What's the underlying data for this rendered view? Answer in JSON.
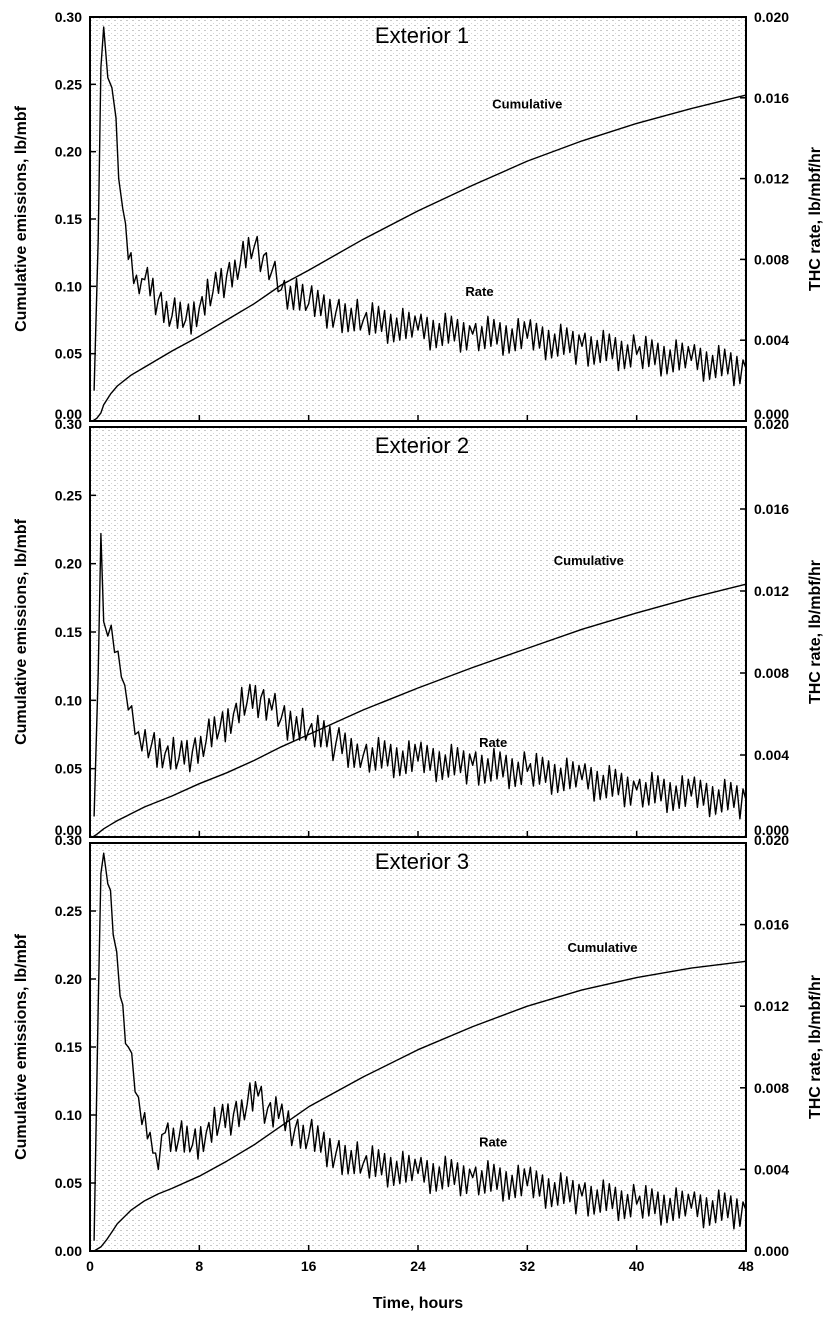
{
  "x_label": "Time, hours",
  "colors": {
    "background": "#ffffff",
    "ink": "#000000",
    "plot_texture": "#c8c8c8"
  },
  "chart_data": [
    {
      "type": "line",
      "title": "Exterior 1",
      "xlabel": "Time, hours",
      "ylabel": "Cumulative emissions, lb/mbf",
      "y2label": "THC rate, lb/mbf/hr",
      "xlim": [
        0,
        48
      ],
      "ylim": [
        0,
        0.3
      ],
      "y2lim": [
        0,
        0.02
      ],
      "xticks": [
        "0",
        "8",
        "16",
        "24",
        "32",
        "40",
        "48"
      ],
      "yticks": [
        "0.00",
        "0.05",
        "0.10",
        "0.15",
        "0.20",
        "0.25",
        "0.30"
      ],
      "y2ticks": [
        "0.000",
        "0.004",
        "0.008",
        "0.012",
        "0.016",
        "0.020"
      ],
      "annotations": [
        {
          "text": "Cumulative",
          "x": 32,
          "y": 0.232
        },
        {
          "text": "Rate",
          "x": 28.5,
          "y": 0.093
        }
      ],
      "series": [
        {
          "axis": "left",
          "label": "Cumulative",
          "x": [
            0.2,
            0.5,
            0.8,
            1,
            1.5,
            2,
            3,
            4,
            6,
            8,
            10,
            12,
            14,
            16,
            20,
            24,
            28,
            32,
            36,
            40,
            44,
            48
          ],
          "y": [
            0,
            0.002,
            0.006,
            0.012,
            0.02,
            0.026,
            0.034,
            0.04,
            0.052,
            0.063,
            0.075,
            0.087,
            0.101,
            0.112,
            0.135,
            0.156,
            0.175,
            0.193,
            0.208,
            0.221,
            0.232,
            0.242
          ]
        },
        {
          "axis": "right",
          "label": "Rate",
          "x": [
            0.3,
            0.6,
            0.8,
            1,
            1.3,
            1.6,
            1.9,
            2.1,
            2.4,
            2.8,
            3.2,
            3.6,
            4,
            5,
            6,
            7,
            8,
            9,
            10,
            11,
            12,
            12.7,
            13.3,
            14,
            16,
            18,
            20,
            24,
            28,
            32,
            36,
            40,
            44,
            48
          ],
          "y": [
            0.0015,
            0.009,
            0.0175,
            0.0195,
            0.017,
            0.0165,
            0.015,
            0.012,
            0.0105,
            0.008,
            0.0068,
            0.0063,
            0.007,
            0.006,
            0.0052,
            0.005,
            0.0056,
            0.0064,
            0.0072,
            0.0078,
            0.0086,
            0.0082,
            0.0074,
            0.0065,
            0.0058,
            0.0054,
            0.005,
            0.0045,
            0.0043,
            0.0041,
            0.0037,
            0.0033,
            0.003,
            0.0026
          ]
        }
      ]
    },
    {
      "type": "line",
      "title": "Exterior 2",
      "xlabel": "Time, hours",
      "ylabel": "Cumulative emissions, lb/mbf",
      "y2label": "THC rate, lb/mbf/hr",
      "xlim": [
        0,
        48
      ],
      "ylim": [
        0,
        0.3
      ],
      "y2lim": [
        0,
        0.02
      ],
      "xticks": [
        "0",
        "8",
        "16",
        "24",
        "32",
        "40",
        "48"
      ],
      "yticks": [
        "0.00",
        "0.05",
        "0.10",
        "0.15",
        "0.20",
        "0.25",
        "0.30"
      ],
      "y2ticks": [
        "0.000",
        "0.004",
        "0.008",
        "0.012",
        "0.016",
        "0.020"
      ],
      "annotations": [
        {
          "text": "Cumulative",
          "x": 36.5,
          "y": 0.199
        },
        {
          "text": "Rate",
          "x": 29.5,
          "y": 0.066
        }
      ],
      "series": [
        {
          "axis": "left",
          "label": "Cumulative",
          "x": [
            0.2,
            0.5,
            1,
            1.5,
            2,
            3,
            4,
            6,
            8,
            10,
            12,
            14,
            16,
            20,
            24,
            28,
            32,
            36,
            40,
            44,
            48
          ],
          "y": [
            0,
            0.002,
            0.006,
            0.009,
            0.012,
            0.017,
            0.022,
            0.03,
            0.039,
            0.047,
            0.056,
            0.066,
            0.075,
            0.093,
            0.109,
            0.124,
            0.138,
            0.152,
            0.164,
            0.175,
            0.185
          ]
        },
        {
          "axis": "right",
          "label": "Rate",
          "x": [
            0.3,
            0.6,
            0.8,
            1,
            1.3,
            1.8,
            2.3,
            2.8,
            3.3,
            3.8,
            4.5,
            5.5,
            6.5,
            7.5,
            8.5,
            9.5,
            10.5,
            11.5,
            12.5,
            13.3,
            14,
            16,
            18,
            20,
            24,
            28,
            32,
            36,
            40,
            44,
            48
          ],
          "y": [
            0.001,
            0.008,
            0.0148,
            0.0105,
            0.0098,
            0.009,
            0.0078,
            0.0062,
            0.005,
            0.0042,
            0.0045,
            0.0041,
            0.0038,
            0.0042,
            0.0047,
            0.0053,
            0.006,
            0.0066,
            0.0068,
            0.0062,
            0.0058,
            0.0052,
            0.0046,
            0.004,
            0.0037,
            0.0035,
            0.0032,
            0.0028,
            0.0023,
            0.002,
            0.0018
          ]
        }
      ]
    },
    {
      "type": "line",
      "title": "Exterior 3",
      "xlabel": "Time, hours",
      "ylabel": "Cumulative emissions, lb/mbf",
      "y2label": "THC rate, lb/mbf/hr",
      "xlim": [
        0,
        48
      ],
      "ylim": [
        0,
        0.3
      ],
      "y2lim": [
        0,
        0.02
      ],
      "xticks": [
        "0",
        "8",
        "16",
        "24",
        "32",
        "40",
        "48"
      ],
      "yticks": [
        "0.00",
        "0.05",
        "0.10",
        "0.15",
        "0.20",
        "0.25",
        "0.30"
      ],
      "y2ticks": [
        "0.000",
        "0.004",
        "0.008",
        "0.012",
        "0.016",
        "0.020"
      ],
      "annotations": [
        {
          "text": "Cumulative",
          "x": 37.5,
          "y": 0.22
        },
        {
          "text": "Rate",
          "x": 29.5,
          "y": 0.077
        }
      ],
      "series": [
        {
          "axis": "left",
          "label": "Cumulative",
          "x": [
            0.3,
            0.8,
            1.2,
            1.6,
            2,
            3,
            4,
            5,
            6,
            8,
            10,
            12,
            14,
            16,
            20,
            24,
            28,
            32,
            36,
            40,
            44,
            48
          ],
          "y": [
            0,
            0.003,
            0.008,
            0.014,
            0.02,
            0.03,
            0.037,
            0.042,
            0.046,
            0.055,
            0.066,
            0.078,
            0.092,
            0.106,
            0.128,
            0.148,
            0.165,
            0.18,
            0.192,
            0.201,
            0.208,
            0.213
          ]
        },
        {
          "axis": "right",
          "label": "Rate",
          "x": [
            0.3,
            0.6,
            0.8,
            1,
            1.3,
            1.7,
            2.2,
            2.8,
            3.3,
            3.8,
            4.2,
            4.6,
            5,
            5.5,
            6.5,
            7.5,
            8.5,
            9.5,
            10.5,
            11.5,
            12.3,
            13,
            13.8,
            15,
            16,
            18,
            20,
            24,
            28,
            32,
            36,
            40,
            44,
            48
          ],
          "y": [
            0.0005,
            0.012,
            0.0185,
            0.0195,
            0.018,
            0.0155,
            0.0125,
            0.01,
            0.0078,
            0.0062,
            0.0055,
            0.0048,
            0.004,
            0.0058,
            0.0055,
            0.0052,
            0.0058,
            0.0063,
            0.0067,
            0.0072,
            0.0076,
            0.007,
            0.0065,
            0.006,
            0.0056,
            0.0048,
            0.0043,
            0.0038,
            0.0036,
            0.0032,
            0.0027,
            0.0023,
            0.0021,
            0.002
          ]
        }
      ]
    }
  ]
}
